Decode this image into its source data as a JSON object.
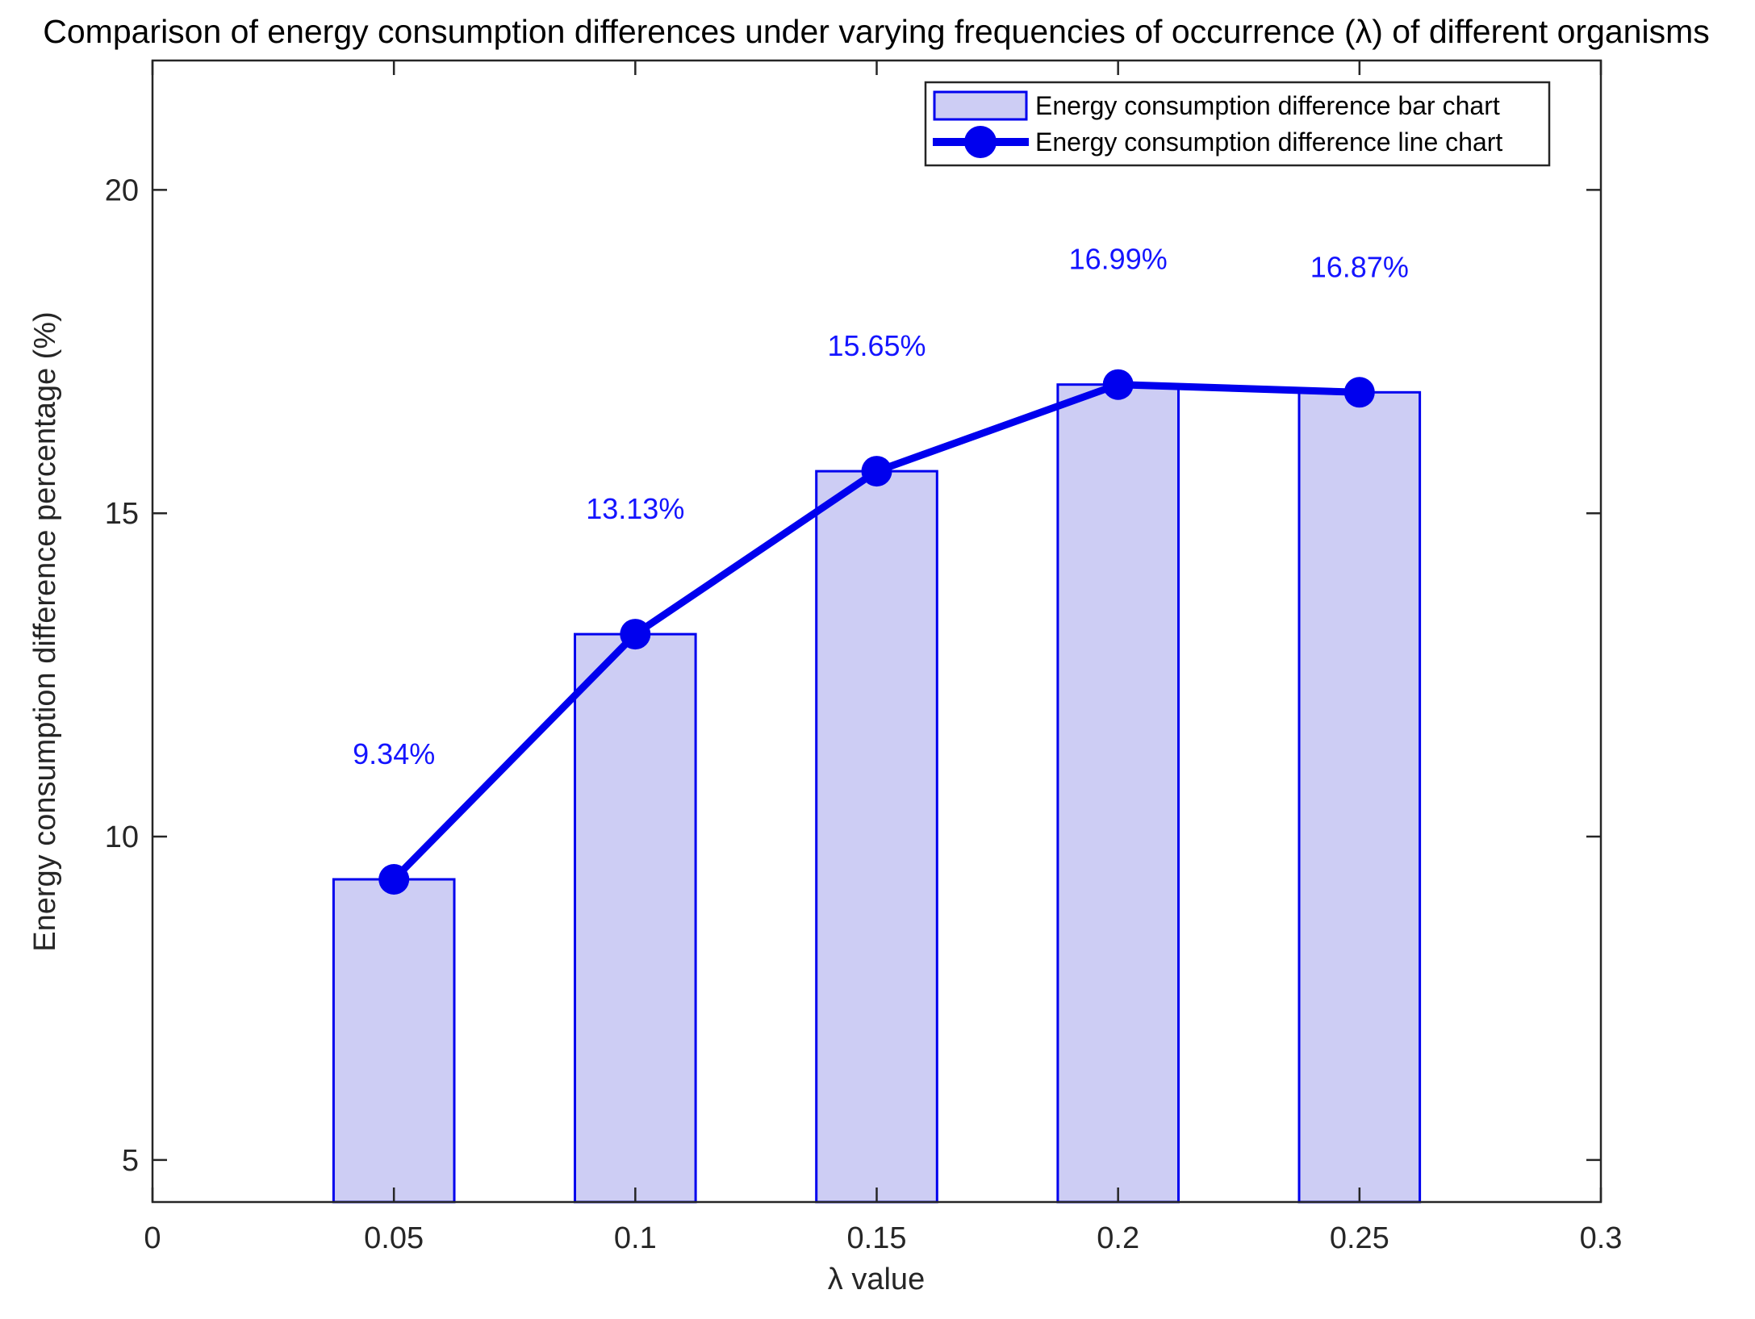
{
  "chart_data": {
    "type": "bar",
    "title": "Comparison of energy consumption differences under varying frequencies of occurrence (λ) of different organisms",
    "xlabel": "λ value",
    "ylabel": "Energy consumption difference percentage (%)",
    "x": [
      0.05,
      0.1,
      0.15,
      0.2,
      0.25
    ],
    "series": [
      {
        "name": "Energy consumption difference bar chart",
        "type": "bar",
        "values": [
          9.34,
          13.13,
          15.65,
          16.99,
          16.87
        ]
      },
      {
        "name": "Energy consumption difference line chart",
        "type": "line",
        "values": [
          9.34,
          13.13,
          15.65,
          16.99,
          16.87
        ]
      }
    ],
    "data_labels": [
      "9.34%",
      "13.13%",
      "15.65%",
      "16.99%",
      "16.87%"
    ],
    "xlim": [
      0,
      0.3
    ],
    "ylim": [
      4.35,
      22
    ],
    "xticks": [
      0,
      0.05,
      0.1,
      0.15,
      0.2,
      0.25,
      0.3
    ],
    "xtick_labels": [
      "0",
      "0.05",
      "0.1",
      "0.15",
      "0.2",
      "0.25",
      "0.3"
    ],
    "yticks": [
      5,
      10,
      15,
      20
    ],
    "ytick_labels": [
      "5",
      "10",
      "15",
      "20"
    ],
    "bar_width": 0.025,
    "grid": false,
    "legend_position": "top-right",
    "colors": {
      "bar_fill": "#CDCDF4",
      "bar_edge": "#0000EE",
      "line": "#0000EE",
      "marker": "#0000EE",
      "data_label": "#1414FF",
      "axis": "#262626",
      "tick_label": "#262626",
      "title": "#000000",
      "legend_border": "#262626",
      "legend_bg": "#FFFFFF"
    }
  }
}
